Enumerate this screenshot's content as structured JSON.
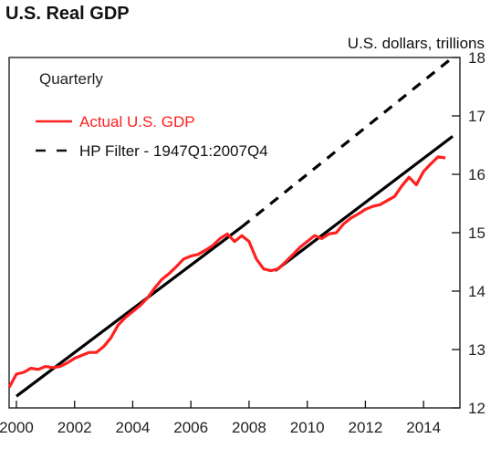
{
  "title": "U.S. Real GDP",
  "unit_label": "U.S. dollars, trillions",
  "chart_data": {
    "type": "line",
    "title": "U.S. Real GDP",
    "ylabel": "U.S. dollars, trillions",
    "frequency_note": "Quarterly",
    "xlim": [
      1999.75,
      2015.25
    ],
    "ylim": [
      12,
      18
    ],
    "x_ticks": [
      2000,
      2002,
      2004,
      2006,
      2008,
      2010,
      2012,
      2014
    ],
    "x_tick_labels": [
      "2000",
      "2002",
      "2004",
      "2006",
      "2008",
      "2010",
      "2012",
      "2014"
    ],
    "y_ticks": [
      12,
      13,
      14,
      15,
      16,
      17,
      18
    ],
    "y_tick_labels": [
      "12",
      "13",
      "14",
      "15",
      "16",
      "17",
      "18"
    ],
    "y_axis_side": "right",
    "grid": false,
    "legend_position": "top-left",
    "series": [
      {
        "name": "Actual U.S. GDP",
        "color": "#ff2020",
        "style": "solid",
        "x": [
          1999.75,
          2000.0,
          2000.25,
          2000.5,
          2000.75,
          2001.0,
          2001.25,
          2001.5,
          2001.75,
          2002.0,
          2002.25,
          2002.5,
          2002.75,
          2003.0,
          2003.25,
          2003.5,
          2003.75,
          2004.0,
          2004.25,
          2004.5,
          2004.75,
          2005.0,
          2005.25,
          2005.5,
          2005.75,
          2006.0,
          2006.25,
          2006.5,
          2006.75,
          2007.0,
          2007.25,
          2007.5,
          2007.75,
          2008.0,
          2008.25,
          2008.5,
          2008.75,
          2009.0,
          2009.25,
          2009.5,
          2009.75,
          2010.0,
          2010.25,
          2010.5,
          2010.75,
          2011.0,
          2011.25,
          2011.5,
          2011.75,
          2012.0,
          2012.25,
          2012.5,
          2012.75,
          2013.0,
          2013.25,
          2013.5,
          2013.75,
          2014.0,
          2014.25,
          2014.5,
          2014.75
        ],
        "values": [
          12.35,
          12.58,
          12.61,
          12.68,
          12.66,
          12.71,
          12.69,
          12.71,
          12.77,
          12.85,
          12.9,
          12.95,
          12.95,
          13.05,
          13.2,
          13.42,
          13.55,
          13.65,
          13.75,
          13.88,
          14.05,
          14.2,
          14.3,
          14.42,
          14.55,
          14.6,
          14.63,
          14.7,
          14.78,
          14.9,
          14.98,
          14.85,
          14.95,
          14.85,
          14.55,
          14.38,
          14.35,
          14.38,
          14.5,
          14.62,
          14.75,
          14.85,
          14.95,
          14.9,
          14.98,
          15.0,
          15.15,
          15.25,
          15.32,
          15.4,
          15.45,
          15.48,
          15.55,
          15.62,
          15.8,
          15.95,
          15.82,
          16.05,
          16.18,
          16.3,
          16.28
        ]
      },
      {
        "name": "HP Filter - 1947Q1:2007Q4",
        "color": "#000000",
        "style": "dashed",
        "segments": [
          {
            "style": "solid",
            "x": [
              2000.0,
              2007.75
            ],
            "values": [
              12.2,
              15.1
            ]
          },
          {
            "style": "dashed",
            "x": [
              2007.75,
              2015.0
            ],
            "values": [
              15.1,
              18.0
            ]
          },
          {
            "style": "solid",
            "x": [
              2008.9,
              2015.0
            ],
            "values": [
              14.35,
              16.65
            ]
          }
        ]
      }
    ]
  }
}
